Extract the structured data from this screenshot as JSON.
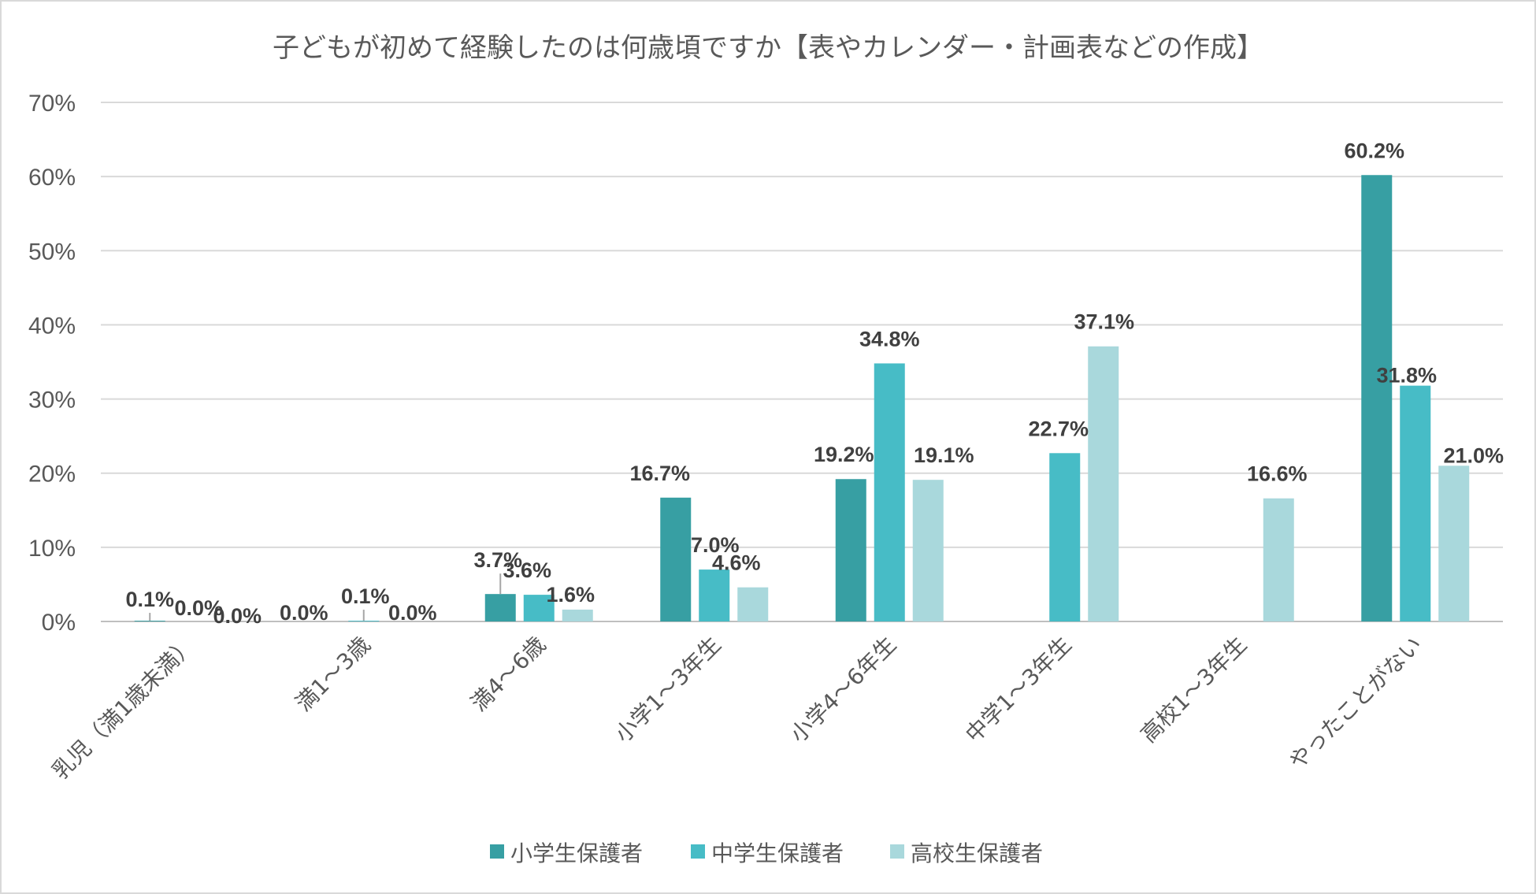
{
  "chart_data": {
    "type": "bar",
    "title": "子どもが初めて経験したのは何歳頃ですか【表やカレンダー・計画表などの作成】",
    "xlabel": "",
    "ylabel": "",
    "ylim": [
      0,
      70
    ],
    "yticks": [
      0,
      10,
      20,
      30,
      40,
      50,
      60,
      70
    ],
    "ytick_labels": [
      "0%",
      "10%",
      "20%",
      "30%",
      "40%",
      "50%",
      "60%",
      "70%"
    ],
    "grid": true,
    "legend_position": "bottom",
    "categories": [
      "乳児（満1歳未満）",
      "満1～3歳",
      "満4～6歳",
      "小学1～3年生",
      "小学4～6年生",
      "中学1～3年生",
      "高校1～3年生",
      "やったことがない"
    ],
    "series": [
      {
        "name": "小学生保護者",
        "color": "#379fa3",
        "values": [
          0.1,
          0.0,
          3.7,
          16.7,
          19.2,
          null,
          null,
          60.2
        ],
        "labels": [
          "0.1%",
          "0.0%",
          "3.7%",
          "16.7%",
          "19.2%",
          null,
          null,
          "60.2%"
        ]
      },
      {
        "name": "中学生保護者",
        "color": "#47bcc6",
        "values": [
          0.0,
          0.1,
          3.6,
          7.0,
          34.8,
          22.7,
          null,
          31.8
        ],
        "labels": [
          "0.0%",
          "0.1%",
          "3.6%",
          "7.0%",
          "34.8%",
          "22.7%",
          null,
          "31.8%"
        ]
      },
      {
        "name": "高校生保護者",
        "color": "#a9d8dc",
        "values": [
          0.0,
          0.0,
          1.6,
          4.6,
          19.1,
          37.1,
          16.6,
          21.0
        ],
        "labels": [
          "0.0%",
          "0.0%",
          "1.6%",
          "4.6%",
          "19.1%",
          "37.1%",
          "16.6%",
          "21.0%"
        ]
      }
    ]
  }
}
